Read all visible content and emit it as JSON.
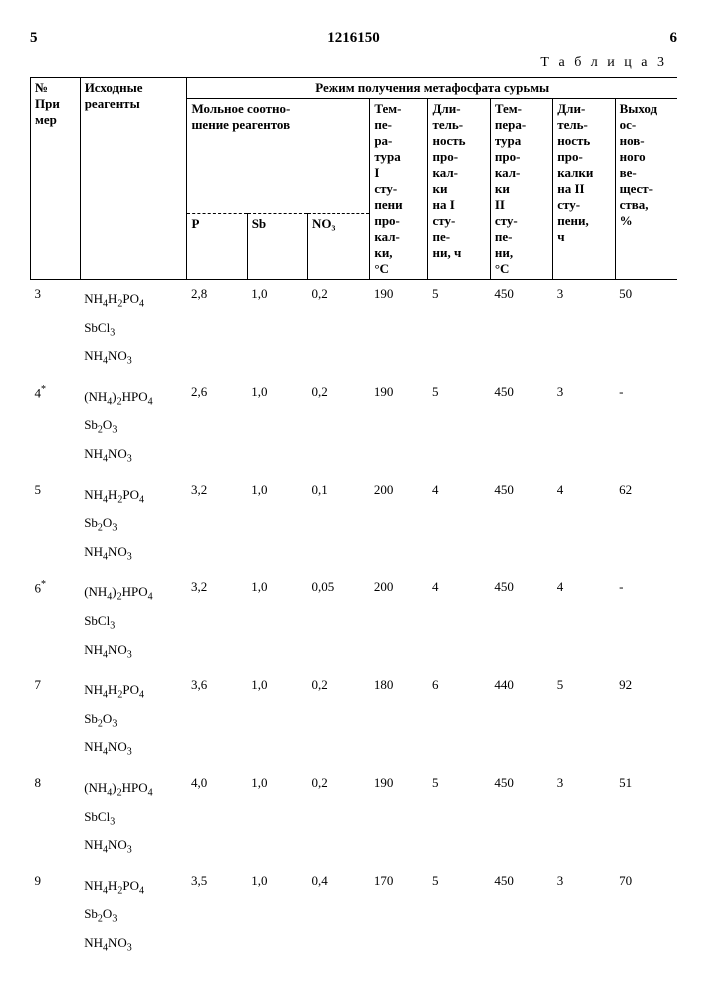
{
  "page_left": "5",
  "doc_no": "1216150",
  "page_right": "6",
  "table_label": "Т а б л и ц а  3",
  "headers": {
    "num": "№\nПри\nмер",
    "reagents": "Исходные\nреагенты",
    "mode": "Режим получения метафосфата сурьмы",
    "molar": "Мольное соотно-\nшение реагентов",
    "P": "P",
    "Sb": "Sb",
    "NO3": "NO₃",
    "t1": "Тем-\nпе-\nра-\nтура\nI\nсту-\nпени\nпро-\nкал-\nки,\n°C",
    "d1": "Дли-\nтель-\nность\nпро-\nкал-\nки\nна I\nсту-\nпе-\nни, ч",
    "t2": "Тем-\nпера-\nтура\nпро-\nкал-\nки\nII\nсту-\nпе-\nни,\n°C",
    "d2": "Дли-\nтель-\nность\nпро-\nкалки\nна II\nсту-\nпени,\nч",
    "yield": "Выход\nос-\nнов-\nного\nве-\nщест-\nства,\n%"
  },
  "rows": [
    {
      "n": "3",
      "note": "",
      "r": [
        "NH₄H₂PO₄",
        "SbCl₃",
        "NH₄NO₃"
      ],
      "P": "2,8",
      "Sb": "1,0",
      "NO3": "0,2",
      "t1": "190",
      "d1": "5",
      "t2": "450",
      "d2": "3",
      "y": "50"
    },
    {
      "n": "4",
      "note": "*",
      "r": [
        "(NH₄)₂HPO₄",
        "Sb₂O₃",
        "NH₄NO₃"
      ],
      "P": "2,6",
      "Sb": "1,0",
      "NO3": "0,2",
      "t1": "190",
      "d1": "5",
      "t2": "450",
      "d2": "3",
      "y": "-"
    },
    {
      "n": "5",
      "note": "",
      "r": [
        "NH₄H₂PO₄",
        "Sb₂O₃",
        "NH₄NO₃"
      ],
      "P": "3,2",
      "Sb": "1,0",
      "NO3": "0,1",
      "t1": "200",
      "d1": "4",
      "t2": "450",
      "d2": "4",
      "y": "62"
    },
    {
      "n": "6",
      "note": "*",
      "r": [
        "(NH₄)₂HPO₄",
        "SbCl₃",
        "NH₄NO₃"
      ],
      "P": "3,2",
      "Sb": "1,0",
      "NO3": "0,05",
      "t1": "200",
      "d1": "4",
      "t2": "450",
      "d2": "4",
      "y": "-"
    },
    {
      "n": "7",
      "note": "",
      "r": [
        "NH₄H₂PO₄",
        "Sb₂O₃",
        "NH₄NO₃"
      ],
      "P": "3,6",
      "Sb": "1,0",
      "NO3": "0,2",
      "t1": "180",
      "d1": "6",
      "t2": "440",
      "d2": "5",
      "y": "92"
    },
    {
      "n": "8",
      "note": "",
      "r": [
        "(NH₄)₂HPO₄",
        "SbCl₃",
        "NH₄NO₃"
      ],
      "P": "4,0",
      "Sb": "1,0",
      "NO3": "0,2",
      "t1": "190",
      "d1": "5",
      "t2": "450",
      "d2": "3",
      "y": "51"
    },
    {
      "n": "9",
      "note": "",
      "r": [
        "NH₄H₂PO₄",
        "Sb₂O₃",
        "NH₄NO₃"
      ],
      "P": "3,5",
      "Sb": "1,0",
      "NO3": "0,4",
      "t1": "170",
      "d1": "5",
      "t2": "450",
      "d2": "3",
      "y": "70"
    }
  ]
}
